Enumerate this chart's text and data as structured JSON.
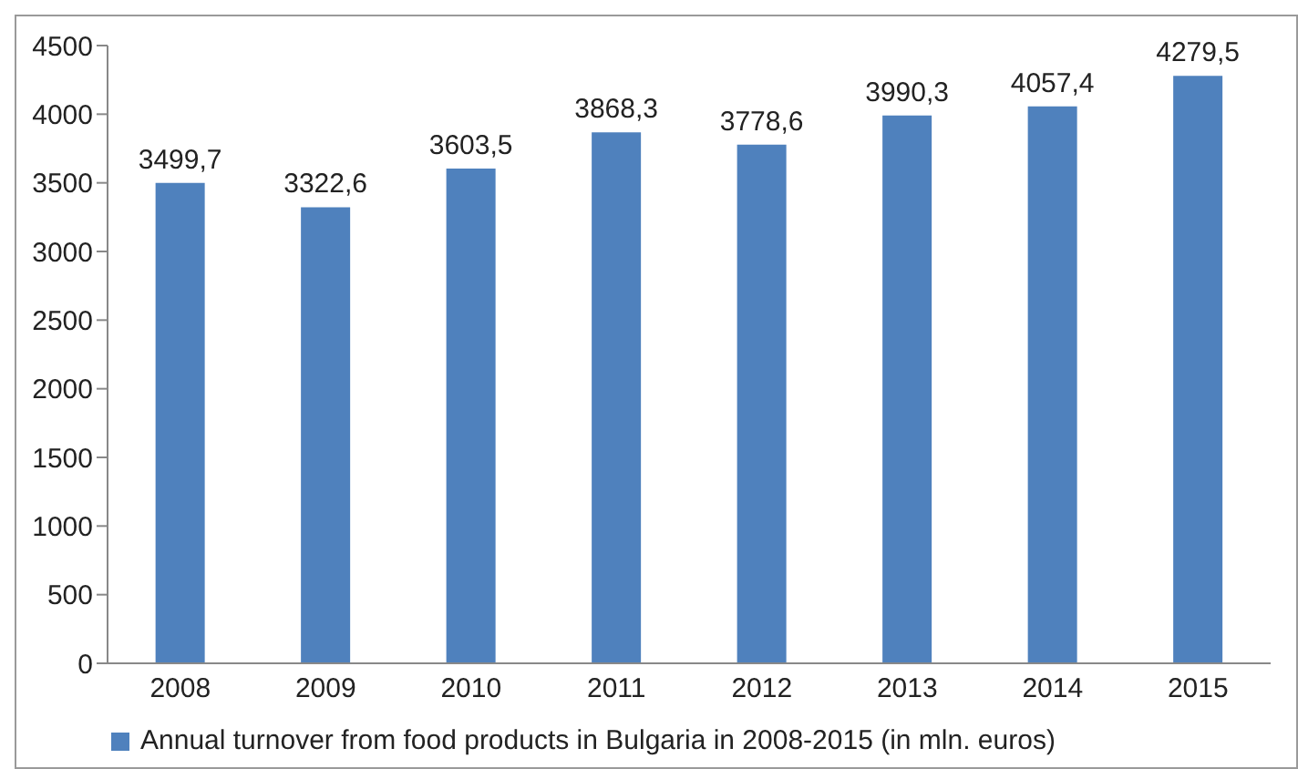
{
  "chart_data": {
    "type": "bar",
    "categories": [
      "2008",
      "2009",
      "2010",
      "2011",
      "2012",
      "2013",
      "2014",
      "2015"
    ],
    "series": [
      {
        "name": "Annual turnover from food products in Bulgaria in 2008-2015 (in mln. euros)",
        "color": "#4f81bd",
        "values": [
          3499.7,
          3322.6,
          3603.5,
          3868.3,
          3778.6,
          3990.3,
          4057.4,
          4279.5
        ],
        "value_labels": [
          "3499,7",
          "3322,6",
          "3603,5",
          "3868,3",
          "3778,6",
          "3990,3",
          "4057,4",
          "4279,5"
        ]
      }
    ],
    "ylim": [
      0,
      4500
    ],
    "yticks": [
      0,
      500,
      1000,
      1500,
      2000,
      2500,
      3000,
      3500,
      4000,
      4500
    ],
    "grid": false,
    "legend": "bottom"
  }
}
